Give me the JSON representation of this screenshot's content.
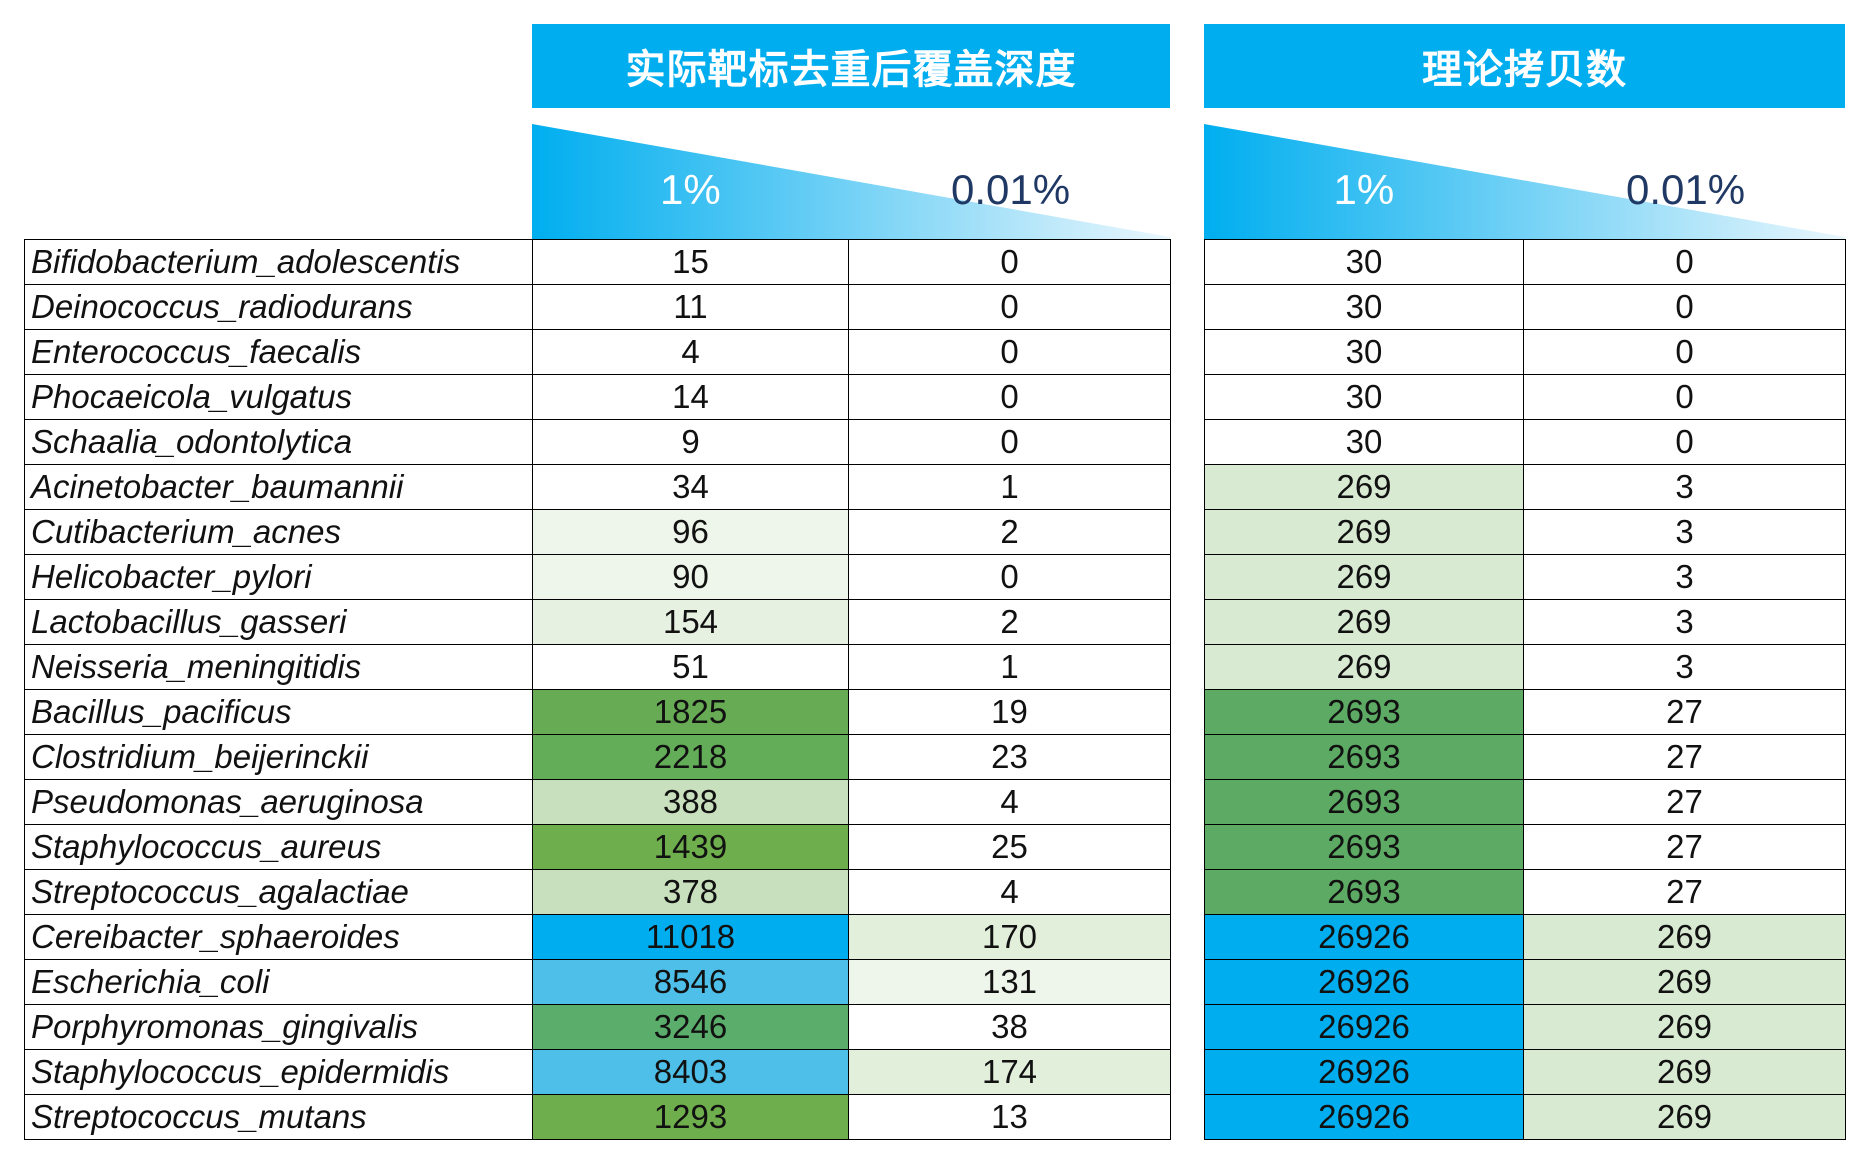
{
  "chart_data": {
    "type": "table",
    "groups": [
      {
        "title": "实际靶标去重后覆盖深度",
        "columns": [
          "1%",
          "0.01%"
        ]
      },
      {
        "title": "理论拷贝数",
        "columns": [
          "1%",
          "0.01%"
        ]
      }
    ],
    "rows": [
      {
        "name": "Bifidobacterium_adolescentis",
        "values": [
          15,
          0,
          30,
          0
        ],
        "colors": [
          "#ffffff",
          "#ffffff",
          "#ffffff",
          "#ffffff"
        ]
      },
      {
        "name": "Deinococcus_radiodurans",
        "values": [
          11,
          0,
          30,
          0
        ],
        "colors": [
          "#ffffff",
          "#ffffff",
          "#ffffff",
          "#ffffff"
        ]
      },
      {
        "name": "Enterococcus_faecalis",
        "values": [
          4,
          0,
          30,
          0
        ],
        "colors": [
          "#ffffff",
          "#ffffff",
          "#ffffff",
          "#ffffff"
        ]
      },
      {
        "name": "Phocaeicola_vulgatus",
        "values": [
          14,
          0,
          30,
          0
        ],
        "colors": [
          "#ffffff",
          "#ffffff",
          "#ffffff",
          "#ffffff"
        ]
      },
      {
        "name": "Schaalia_odontolytica",
        "values": [
          9,
          0,
          30,
          0
        ],
        "colors": [
          "#ffffff",
          "#ffffff",
          "#ffffff",
          "#ffffff"
        ]
      },
      {
        "name": "Acinetobacter_baumannii",
        "values": [
          34,
          1,
          269,
          3
        ],
        "colors": [
          "#ffffff",
          "#ffffff",
          "#d9ead3",
          "#ffffff"
        ]
      },
      {
        "name": "Cutibacterium_acnes",
        "values": [
          96,
          2,
          269,
          3
        ],
        "colors": [
          "#eef5ea",
          "#ffffff",
          "#d9ead3",
          "#ffffff"
        ]
      },
      {
        "name": "Helicobacter_pylori",
        "values": [
          90,
          0,
          269,
          3
        ],
        "colors": [
          "#eef5ea",
          "#ffffff",
          "#d9ead3",
          "#ffffff"
        ]
      },
      {
        "name": "Lactobacillus_gasseri",
        "values": [
          154,
          2,
          269,
          3
        ],
        "colors": [
          "#e7f1e2",
          "#ffffff",
          "#d9ead3",
          "#ffffff"
        ]
      },
      {
        "name": "Neisseria_meningitidis",
        "values": [
          51,
          1,
          269,
          3
        ],
        "colors": [
          "#ffffff",
          "#ffffff",
          "#d9ead3",
          "#ffffff"
        ]
      },
      {
        "name": "Bacillus_pacificus",
        "values": [
          1825,
          19,
          2693,
          27
        ],
        "colors": [
          "#67ac55",
          "#ffffff",
          "#5caa63",
          "#ffffff"
        ]
      },
      {
        "name": "Clostridium_beijerinckii",
        "values": [
          2218,
          23,
          2693,
          27
        ],
        "colors": [
          "#63ac58",
          "#ffffff",
          "#5caa63",
          "#ffffff"
        ]
      },
      {
        "name": "Pseudomonas_aeruginosa",
        "values": [
          388,
          4,
          2693,
          27
        ],
        "colors": [
          "#c8e0bd",
          "#ffffff",
          "#5caa63",
          "#ffffff"
        ]
      },
      {
        "name": "Staphylococcus_aureus",
        "values": [
          1439,
          25,
          2693,
          27
        ],
        "colors": [
          "#6fae4c",
          "#ffffff",
          "#5caa63",
          "#ffffff"
        ]
      },
      {
        "name": "Streptococcus_agalactiae",
        "values": [
          378,
          4,
          2693,
          27
        ],
        "colors": [
          "#c8e0bd",
          "#ffffff",
          "#5caa63",
          "#ffffff"
        ]
      },
      {
        "name": "Cereibacter_sphaeroides",
        "values": [
          11018,
          170,
          26926,
          269
        ],
        "colors": [
          "#00aeef",
          "#e2efdb",
          "#00aeef",
          "#d9ead3"
        ]
      },
      {
        "name": "Escherichia_coli",
        "values": [
          8546,
          131,
          26926,
          269
        ],
        "colors": [
          "#4dbfe9",
          "#eef5ea",
          "#00aeef",
          "#d9ead3"
        ]
      },
      {
        "name": "Porphyromonas_gingivalis",
        "values": [
          3246,
          38,
          26926,
          269
        ],
        "colors": [
          "#5aad6b",
          "#ffffff",
          "#00aeef",
          "#d9ead3"
        ]
      },
      {
        "name": "Staphylococcus_epidermidis",
        "values": [
          8403,
          174,
          26926,
          269
        ],
        "colors": [
          "#4dbfe9",
          "#e2efdb",
          "#00aeef",
          "#d9ead3"
        ]
      },
      {
        "name": "Streptococcus_mutans",
        "values": [
          1293,
          13,
          26926,
          269
        ],
        "colors": [
          "#6fae4c",
          "#ffffff",
          "#00aeef",
          "#d9ead3"
        ]
      }
    ]
  },
  "colors": {
    "banner": "#00aeef",
    "wedge_dark": "#00aeef",
    "wedge_light": "#eaf7fd",
    "label_dark": "#1f3864"
  }
}
